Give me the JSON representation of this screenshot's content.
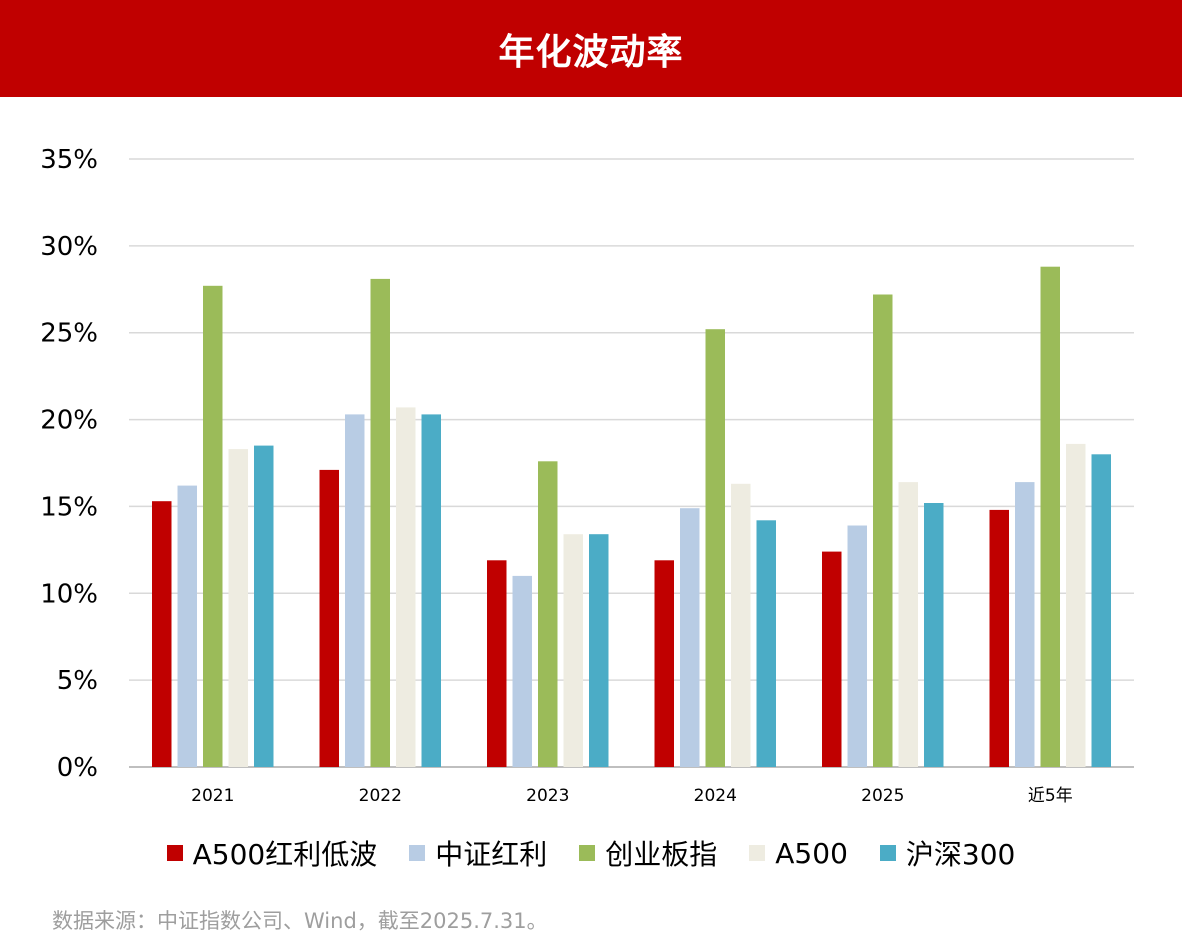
{
  "header": {
    "title": "年化波动率"
  },
  "footer": {
    "source_note": "数据来源：中证指数公司、Wind，截至2025.7.31。"
  },
  "chart_data": {
    "type": "bar",
    "title": "年化波动率",
    "xlabel": "",
    "ylabel": "",
    "ylim": [
      0,
      35
    ],
    "y_ticks": [
      0,
      5,
      10,
      15,
      20,
      25,
      30,
      35
    ],
    "y_tick_labels": [
      "0%",
      "5%",
      "10%",
      "15%",
      "20%",
      "25%",
      "30%",
      "35%"
    ],
    "grid": true,
    "legend_position": "bottom",
    "categories": [
      "2021",
      "2022",
      "2023",
      "2024",
      "2025",
      "近5年"
    ],
    "series": [
      {
        "name": "A500红利低波",
        "color": "#C00000",
        "values": [
          15.3,
          17.1,
          11.9,
          11.9,
          12.4,
          14.8
        ]
      },
      {
        "name": "中证红利",
        "color": "#B8CCE4",
        "values": [
          16.2,
          20.3,
          11.0,
          14.9,
          13.9,
          16.4
        ]
      },
      {
        "name": "创业板指",
        "color": "#9BBB59",
        "values": [
          27.7,
          28.1,
          17.6,
          25.2,
          27.2,
          28.8
        ]
      },
      {
        "name": "A500",
        "color": "#EEECE1",
        "values": [
          18.3,
          20.7,
          13.4,
          16.3,
          16.4,
          18.6
        ]
      },
      {
        "name": "沪深300",
        "color": "#4BACC6",
        "values": [
          18.5,
          20.3,
          13.4,
          14.2,
          15.2,
          18.0
        ]
      }
    ]
  }
}
